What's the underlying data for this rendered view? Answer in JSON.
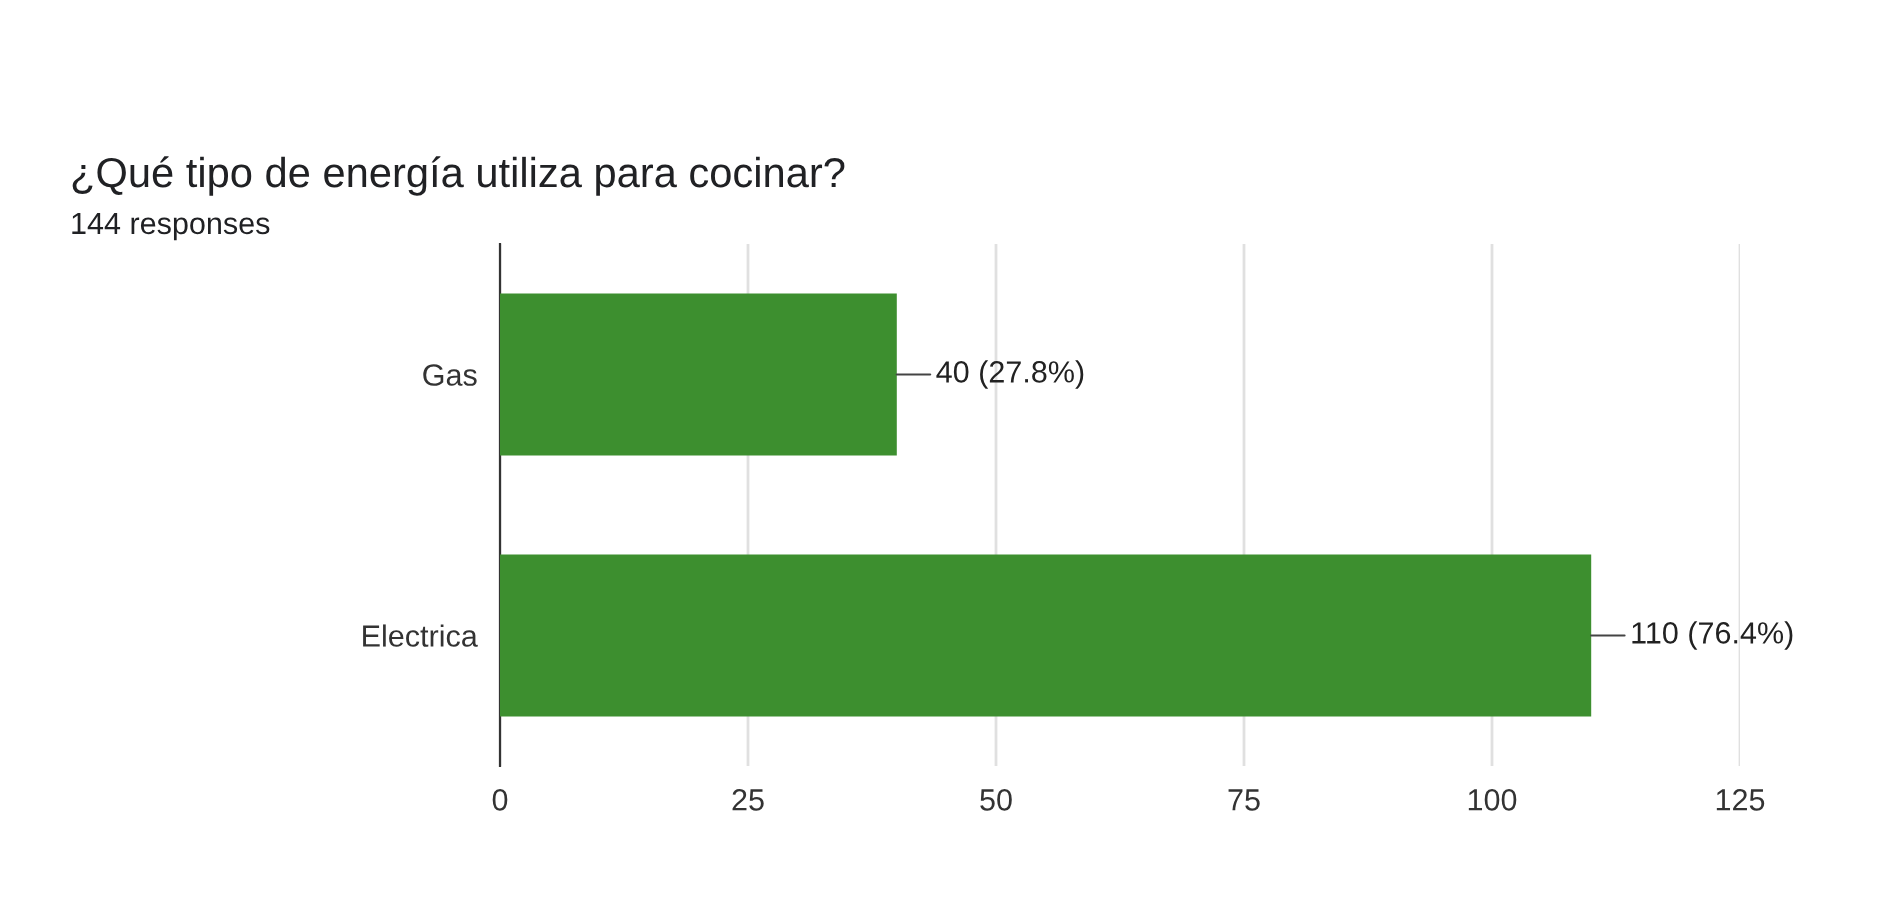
{
  "chart_data": {
    "type": "bar",
    "orientation": "horizontal",
    "title": "¿Qué tipo de energía utiliza para cocinar?",
    "subtitle": "144 responses",
    "categories": [
      "Gas",
      "Electrica"
    ],
    "series": [
      {
        "color": "#3d8f2f",
        "values": [
          40,
          110
        ],
        "value_labels": [
          "40 (27.8%)",
          "110 (76.4%)"
        ]
      }
    ],
    "xlim": [
      0,
      125
    ],
    "xticks": [
      0,
      25,
      50,
      75,
      100,
      125
    ],
    "grid": "x",
    "legend": false
  }
}
